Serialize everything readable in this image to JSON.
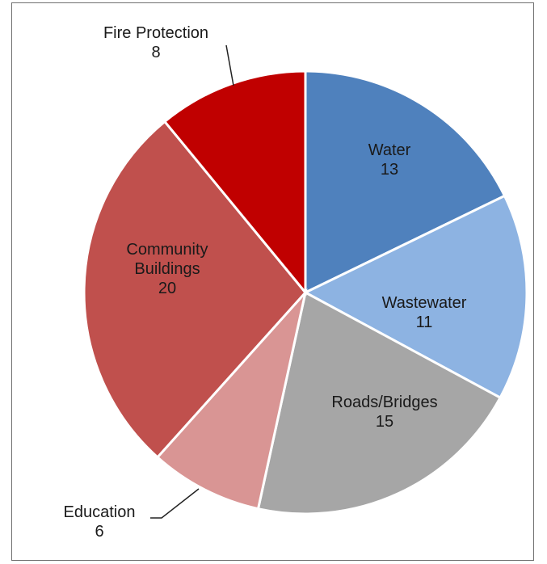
{
  "chart_data": {
    "type": "pie",
    "title": "",
    "slices": [
      {
        "label": "Water",
        "value": 13,
        "color": "#4f81bd",
        "label_lines": [
          "Water",
          "13"
        ]
      },
      {
        "label": "Wastewater",
        "value": 11,
        "color": "#8db3e2",
        "label_lines": [
          "Wastewater",
          "11"
        ]
      },
      {
        "label": "Roads/Bridges",
        "value": 15,
        "color": "#a6a6a6",
        "label_lines": [
          "Roads/Bridges",
          "15"
        ]
      },
      {
        "label": "Education",
        "value": 6,
        "color": "#d99594",
        "label_lines": [
          "Education",
          "6"
        ]
      },
      {
        "label": "Community Buildings",
        "value": 20,
        "color": "#c0504d",
        "label_lines": [
          "Community",
          "Buildings",
          "20"
        ]
      },
      {
        "label": "Fire Protection",
        "value": 8,
        "color": "#c00000",
        "label_lines": [
          "Fire Protection",
          "8"
        ]
      }
    ],
    "start_angle": "12 o'clock",
    "direction": "clockwise",
    "legend": "none"
  }
}
